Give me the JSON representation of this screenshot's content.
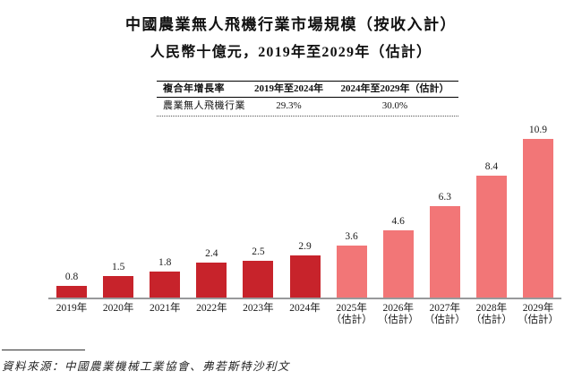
{
  "title": {
    "line1": "中國農業無人飛機行業市場規模（按收入計）",
    "line2": "人民幣十億元，2019年至2029年（估計）"
  },
  "cagr_table": {
    "header": [
      "複合年增長率",
      "2019年至2024年",
      "2024年至2029年（估計）"
    ],
    "rows": [
      [
        "農業無人飛機行業",
        "29.3%",
        "30.0%"
      ]
    ]
  },
  "chart_data": {
    "type": "bar",
    "title": "中國農業無人飛機行業市場規模（按收入計）",
    "subtitle": "人民幣十億元，2019年至2029年（估計）",
    "ylabel": "人民幣十億元",
    "categories": [
      {
        "line1": "2019年",
        "line2": ""
      },
      {
        "line1": "2020年",
        "line2": ""
      },
      {
        "line1": "2021年",
        "line2": ""
      },
      {
        "line1": "2022年",
        "line2": ""
      },
      {
        "line1": "2023年",
        "line2": ""
      },
      {
        "line1": "2024年",
        "line2": ""
      },
      {
        "line1": "2025年",
        "line2": "（估計）"
      },
      {
        "line1": "2026年",
        "line2": "（估計）"
      },
      {
        "line1": "2027年",
        "line2": "（估計）"
      },
      {
        "line1": "2028年",
        "line2": "（估計）"
      },
      {
        "line1": "2029年",
        "line2": "（估計）"
      }
    ],
    "values": [
      0.8,
      1.5,
      1.8,
      2.4,
      2.5,
      2.9,
      3.6,
      4.6,
      6.3,
      8.4,
      10.9
    ],
    "value_labels": [
      "0.8",
      "1.5",
      "1.8",
      "2.4",
      "2.5",
      "2.9",
      "3.6",
      "4.6",
      "6.3",
      "8.4",
      "10.9"
    ],
    "is_estimate": [
      false,
      false,
      false,
      false,
      false,
      false,
      true,
      true,
      true,
      true,
      true
    ],
    "colors": {
      "actual": "#c7232b",
      "estimate": "#f27677",
      "axis": "#98999b"
    },
    "ylim": [
      0,
      10.9
    ],
    "grid": false,
    "legend": false
  },
  "source": "資料來源：中國農業機械工業協會、弗若斯特沙利文"
}
